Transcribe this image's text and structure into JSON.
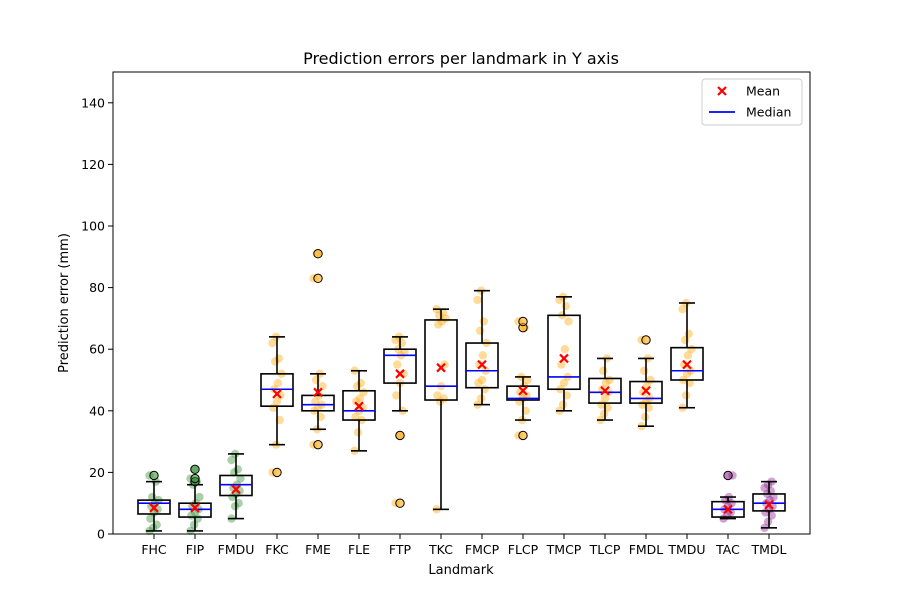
{
  "chart_data": {
    "type": "box",
    "title": "Prediction errors per landmark in Y axis",
    "xlabel": "Landmark",
    "ylabel": "Prediction error (mm)",
    "ylim": [
      0,
      150
    ],
    "yticks": [
      0,
      20,
      40,
      60,
      80,
      100,
      120,
      140
    ],
    "grid": false,
    "legend": {
      "position": "top-right",
      "entries": [
        {
          "label": "Mean",
          "marker": "x",
          "color": "#ff0000"
        },
        {
          "label": "Median",
          "marker": "line",
          "color": "#0000ff"
        }
      ]
    },
    "categories": [
      "FHC",
      "FIP",
      "FMDU",
      "FKC",
      "FME",
      "FLE",
      "FTP",
      "TKC",
      "FMCP",
      "FLCP",
      "TMCP",
      "TLCP",
      "FMDL",
      "TMDU",
      "TAC",
      "TMDL"
    ],
    "boxes": [
      {
        "label": "FHC",
        "color": "#2e8b2e",
        "whislo": 1,
        "q1": 6.5,
        "med": 10,
        "q3": 11,
        "whishi": 17,
        "mean": 8.5,
        "fliers": [
          19
        ],
        "points": [
          1,
          2,
          3,
          5,
          7,
          8,
          9,
          10,
          11,
          12,
          17,
          19
        ]
      },
      {
        "label": "FIP",
        "color": "#2e8b2e",
        "whislo": 1,
        "q1": 5.5,
        "med": 8,
        "q3": 10,
        "whishi": 16,
        "mean": 8.5,
        "fliers": [
          17,
          18,
          21
        ],
        "points": [
          1,
          3,
          5,
          6,
          7,
          8,
          9,
          10,
          12,
          16,
          17,
          18,
          21
        ]
      },
      {
        "label": "FMDU",
        "color": "#2e8b2e",
        "whislo": 5,
        "q1": 12.5,
        "med": 16,
        "q3": 19,
        "whishi": 26,
        "mean": 14.5,
        "fliers": [],
        "points": [
          5,
          9,
          10,
          12,
          13,
          14,
          15,
          16,
          18,
          20,
          21,
          24,
          26
        ]
      },
      {
        "label": "FKC",
        "color": "#ffa500",
        "whislo": 29,
        "q1": 41.5,
        "med": 47,
        "q3": 52,
        "whishi": 64,
        "mean": 45.5,
        "fliers": [
          20
        ],
        "points": [
          20,
          29,
          37,
          41,
          43,
          45,
          47,
          49,
          52,
          56,
          57,
          62,
          64
        ]
      },
      {
        "label": "FME",
        "color": "#ffa500",
        "whislo": 34,
        "q1": 40,
        "med": 42,
        "q3": 45,
        "whishi": 52,
        "mean": 46,
        "fliers": [
          29,
          83,
          91
        ],
        "points": [
          29,
          34,
          38,
          40,
          41,
          42,
          43,
          45,
          48,
          50,
          52,
          83,
          91
        ]
      },
      {
        "label": "FLE",
        "color": "#ffa500",
        "whislo": 27,
        "q1": 37,
        "med": 40,
        "q3": 46.5,
        "whishi": 53,
        "mean": 41.5,
        "fliers": [],
        "points": [
          27,
          33,
          37,
          38,
          40,
          41,
          43,
          44,
          46,
          48,
          49,
          53
        ]
      },
      {
        "label": "FTP",
        "color": "#ffa500",
        "whislo": 40,
        "q1": 49,
        "med": 58,
        "q3": 60,
        "whishi": 64,
        "mean": 52,
        "fliers": [
          10,
          32
        ],
        "points": [
          10,
          32,
          40,
          45,
          49,
          52,
          55,
          58,
          59,
          60,
          62,
          63,
          64
        ]
      },
      {
        "label": "TKC",
        "color": "#ffa500",
        "whislo": 8,
        "q1": 43.5,
        "med": 48,
        "q3": 69.5,
        "whishi": 73,
        "mean": 54,
        "fliers": [],
        "points": [
          8,
          43,
          44,
          45,
          48,
          55,
          68,
          69,
          70,
          71,
          72,
          73
        ]
      },
      {
        "label": "FMCP",
        "color": "#ffa500",
        "whislo": 42,
        "q1": 47.5,
        "med": 53,
        "q3": 62,
        "whishi": 79,
        "mean": 55,
        "fliers": [],
        "points": [
          42,
          44,
          47,
          49,
          50,
          53,
          55,
          58,
          62,
          66,
          69,
          76,
          79
        ]
      },
      {
        "label": "FLCP",
        "color": "#ffa500",
        "whislo": 37,
        "q1": 43.5,
        "med": 44,
        "q3": 48,
        "whishi": 51,
        "mean": 46.5,
        "fliers": [
          32,
          67,
          69
        ],
        "points": [
          32,
          37,
          40,
          43,
          44,
          45,
          46,
          48,
          50,
          51,
          67,
          69
        ]
      },
      {
        "label": "TMCP",
        "color": "#ffa500",
        "whislo": 40,
        "q1": 47,
        "med": 51,
        "q3": 71,
        "whishi": 77,
        "mean": 57,
        "fliers": [],
        "points": [
          40,
          42,
          45,
          47,
          49,
          51,
          55,
          60,
          69,
          71,
          74,
          76,
          77
        ]
      },
      {
        "label": "TLCP",
        "color": "#ffa500",
        "whislo": 37,
        "q1": 42.5,
        "med": 46,
        "q3": 50.5,
        "whishi": 57,
        "mean": 46.5,
        "fliers": [],
        "points": [
          37,
          39,
          41,
          42,
          44,
          46,
          47,
          49,
          50,
          53,
          57
        ]
      },
      {
        "label": "FMDL",
        "color": "#ffa500",
        "whislo": 35,
        "q1": 42.5,
        "med": 44,
        "q3": 49.5,
        "whishi": 57,
        "mean": 46.5,
        "fliers": [
          63
        ],
        "points": [
          35,
          38,
          41,
          42,
          43,
          44,
          46,
          48,
          50,
          53,
          57,
          63
        ]
      },
      {
        "label": "TMDU",
        "color": "#ffa500",
        "whislo": 41,
        "q1": 50,
        "med": 53,
        "q3": 60.5,
        "whishi": 75,
        "mean": 55,
        "fliers": [],
        "points": [
          41,
          45,
          49,
          50,
          52,
          53,
          55,
          58,
          60,
          63,
          65,
          73,
          75
        ]
      },
      {
        "label": "TAC",
        "color": "#8b1a8b",
        "whislo": 5,
        "q1": 5.5,
        "med": 8,
        "q3": 10.5,
        "whishi": 12,
        "mean": 8,
        "fliers": [
          19
        ],
        "points": [
          5,
          6,
          7,
          8,
          9,
          10,
          11,
          12,
          19
        ]
      },
      {
        "label": "TMDL",
        "color": "#8b1a8b",
        "whislo": 2,
        "q1": 7.5,
        "med": 10,
        "q3": 13,
        "whishi": 17,
        "mean": 9.5,
        "fliers": [],
        "points": [
          2,
          4,
          6,
          7,
          8,
          9,
          10,
          11,
          12,
          13,
          14,
          15,
          16,
          17
        ]
      }
    ]
  }
}
